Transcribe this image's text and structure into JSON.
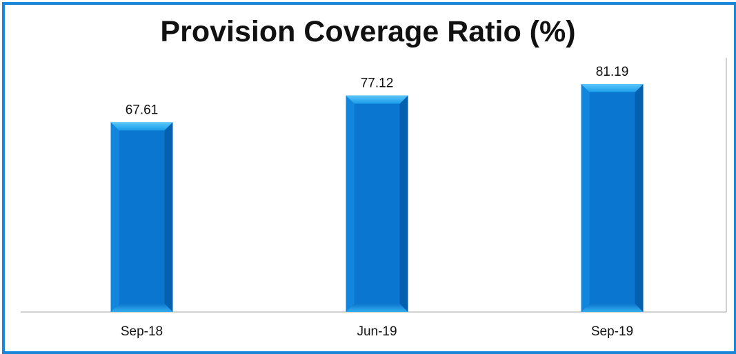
{
  "chart_data": {
    "type": "bar",
    "title": "Provision Coverage Ratio (%)",
    "categories": [
      "Sep-18",
      "Jun-19",
      "Sep-19"
    ],
    "values": [
      67.61,
      77.12,
      81.19
    ],
    "value_labels": [
      "67.61",
      "77.12",
      "81.19"
    ],
    "xlabel": "",
    "ylabel": "",
    "ylim": [
      0,
      100
    ],
    "grid": false,
    "legend": "none",
    "colors": {
      "bar": "#0a76cf",
      "bar_light": "#35b4f5",
      "bar_dark": "#0660b0",
      "frame": "#1a86d8",
      "axis": "#a6a6a6"
    }
  }
}
